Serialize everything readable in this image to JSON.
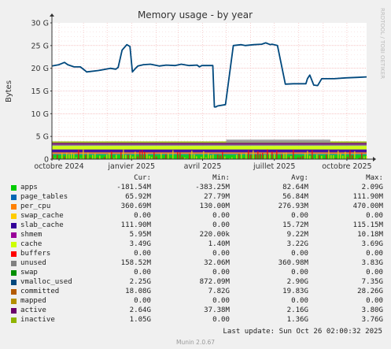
{
  "chart_data": {
    "type": "line",
    "title": "Memory usage - by year",
    "ylabel": "Bytes",
    "side_text": "RRDTOOL / TOBI OETIKER",
    "ylim": [
      0,
      30000000000
    ],
    "y_ticks": [
      {
        "v": 0,
        "label": "0"
      },
      {
        "v": 5000000000,
        "label": "5 G"
      },
      {
        "v": 10000000000,
        "label": "10 G"
      },
      {
        "v": 15000000000,
        "label": "15 G"
      },
      {
        "v": 20000000000,
        "label": "20 G"
      },
      {
        "v": 25000000000,
        "label": "25 G"
      },
      {
        "v": 30000000000,
        "label": "30 G"
      }
    ],
    "xlim": [
      "2024-09-22",
      "2025-10-26"
    ],
    "x_ticks": [
      {
        "date": "2024-10-01",
        "label": "octobre 2024"
      },
      {
        "date": "2025-01-01",
        "label": "janvier 2025"
      },
      {
        "date": "2025-04-01",
        "label": "avril 2025"
      },
      {
        "date": "2025-07-01",
        "label": "juillet 2025"
      },
      {
        "date": "2025-10-01",
        "label": "octobre 2025"
      }
    ],
    "grid": true,
    "committed_series": {
      "name": "committed",
      "x": [
        "2024-09-22",
        "2024-10-01",
        "2024-10-08",
        "2024-10-12",
        "2024-10-20",
        "2024-10-28",
        "2024-11-03",
        "2024-11-05",
        "2024-11-20",
        "2024-12-05",
        "2024-12-12",
        "2024-12-15",
        "2024-12-20",
        "2024-12-26",
        "2024-12-30",
        "2025-01-02",
        "2025-01-06",
        "2025-01-09",
        "2025-01-16",
        "2025-01-25",
        "2025-02-05",
        "2025-02-14",
        "2025-02-25",
        "2025-03-05",
        "2025-03-15",
        "2025-03-25",
        "2025-03-28",
        "2025-03-31",
        "2025-04-10",
        "2025-04-14",
        "2025-04-16",
        "2025-04-18",
        "2025-04-20",
        "2025-04-30",
        "2025-05-10",
        "2025-05-20",
        "2025-05-25",
        "2025-06-05",
        "2025-06-15",
        "2025-06-20",
        "2025-06-26",
        "2025-06-28",
        "2025-07-05",
        "2025-07-15",
        "2025-07-25",
        "2025-08-05",
        "2025-08-10",
        "2025-08-12",
        "2025-08-15",
        "2025-08-20",
        "2025-08-25",
        "2025-08-30",
        "2025-09-15",
        "2025-09-30",
        "2025-10-15",
        "2025-10-26"
      ],
      "y": [
        20.5,
        20.8,
        21.3,
        20.8,
        20.3,
        20.3,
        19.5,
        19.2,
        19.5,
        20.0,
        19.8,
        20.2,
        24.0,
        25.2,
        24.8,
        19.2,
        20.0,
        20.5,
        20.8,
        20.9,
        20.5,
        20.7,
        20.6,
        20.9,
        20.6,
        20.7,
        20.3,
        20.6,
        20.6,
        20.6,
        11.5,
        11.5,
        11.7,
        12.0,
        25.0,
        25.2,
        25.0,
        25.2,
        25.3,
        25.6,
        25.2,
        25.3,
        25.0,
        16.5,
        16.6,
        16.6,
        16.6,
        17.7,
        18.5,
        16.3,
        16.2,
        17.7,
        17.7,
        17.9,
        18.0,
        18.1
      ]
    },
    "stack_top_approx": 3.9
  },
  "legend": {
    "headers": {
      "cur": "Cur:",
      "min": "Min:",
      "avg": "Avg:",
      "max": "Max:"
    },
    "rows": [
      {
        "name": "apps",
        "color": "#00cc00",
        "cur": "-181.54M",
        "min": "-383.25M",
        "avg": "82.64M",
        "max": "2.09G"
      },
      {
        "name": "page_tables",
        "color": "#0066b3",
        "cur": "65.92M",
        "min": "27.79M",
        "avg": "56.84M",
        "max": "111.90M"
      },
      {
        "name": "per_cpu",
        "color": "#ff8000",
        "cur": "360.69M",
        "min": "130.00M",
        "avg": "276.93M",
        "max": "470.00M"
      },
      {
        "name": "swap_cache",
        "color": "#ffcc00",
        "cur": "0.00",
        "min": "0.00",
        "avg": "0.00",
        "max": "0.00"
      },
      {
        "name": "slab_cache",
        "color": "#330099",
        "cur": "111.90M",
        "min": "0.00",
        "avg": "15.72M",
        "max": "115.15M"
      },
      {
        "name": "shmem",
        "color": "#990099",
        "cur": "5.95M",
        "min": "220.00k",
        "avg": "9.22M",
        "max": "10.18M"
      },
      {
        "name": "cache",
        "color": "#ccff00",
        "cur": "3.49G",
        "min": "1.40M",
        "avg": "3.22G",
        "max": "3.69G"
      },
      {
        "name": "buffers",
        "color": "#ff0000",
        "cur": "0.00",
        "min": "0.00",
        "avg": "0.00",
        "max": "0.00"
      },
      {
        "name": "unused",
        "color": "#808080",
        "cur": "158.52M",
        "min": "32.06M",
        "avg": "360.98M",
        "max": "3.83G"
      },
      {
        "name": "swap",
        "color": "#008f00",
        "cur": "0.00",
        "min": "0.00",
        "avg": "0.00",
        "max": "0.00"
      },
      {
        "name": "vmalloc_used",
        "color": "#00487d",
        "cur": "2.25G",
        "min": "872.09M",
        "avg": "2.90G",
        "max": "7.35G"
      },
      {
        "name": "committed",
        "color": "#b35a00",
        "cur": "18.08G",
        "min": "7.82G",
        "avg": "19.83G",
        "max": "28.26G"
      },
      {
        "name": "mapped",
        "color": "#b38f00",
        "cur": "0.00",
        "min": "0.00",
        "avg": "0.00",
        "max": "0.00"
      },
      {
        "name": "active",
        "color": "#6b006b",
        "cur": "2.64G",
        "min": "37.38M",
        "avg": "2.16G",
        "max": "3.80G"
      },
      {
        "name": "inactive",
        "color": "#8fb300",
        "cur": "1.05G",
        "min": "0.00",
        "avg": "1.36G",
        "max": "3.76G"
      }
    ]
  },
  "footer": {
    "last_update": "Last update: Sun Oct 26 02:00:32 2025",
    "munin": "Munin 2.0.67"
  }
}
